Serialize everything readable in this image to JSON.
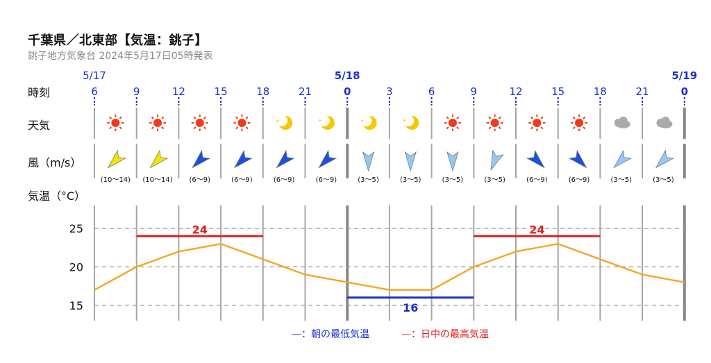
{
  "header": {
    "title": "千葉県／北東部【気温：銚子】",
    "subtitle": "銚子地方気象台 2024年5月17日05時発表"
  },
  "row_labels": {
    "time": "時刻",
    "weather": "天気",
    "wind": "風（m/s）",
    "temp": "気温（°C）"
  },
  "dates": [
    {
      "label": "5/17",
      "col": 0,
      "bold": false
    },
    {
      "label": "5/18",
      "col": 6,
      "bold": true
    },
    {
      "label": "5/19",
      "col": 14,
      "bold": true
    }
  ],
  "hours": [
    "6",
    "9",
    "12",
    "15",
    "18",
    "21",
    "0",
    "3",
    "6",
    "9",
    "12",
    "15",
    "18",
    "21",
    "0"
  ],
  "weather": [
    "sun",
    "sun",
    "sun",
    "sun",
    "moon",
    "moon",
    "moon",
    "moon",
    "sun",
    "sun",
    "sun",
    "sun",
    "cloud",
    "cloud"
  ],
  "wind": [
    {
      "dir": "NE",
      "range": "(10〜14)",
      "color": "#f2e600"
    },
    {
      "dir": "NE",
      "range": "(10〜14)",
      "color": "#f2e600"
    },
    {
      "dir": "NE",
      "range": "(6〜9)",
      "color": "#1a4fe0"
    },
    {
      "dir": "NE",
      "range": "(6〜9)",
      "color": "#1a4fe0"
    },
    {
      "dir": "NE",
      "range": "(6〜9)",
      "color": "#1a4fe0"
    },
    {
      "dir": "NE",
      "range": "(6〜9)",
      "color": "#1a4fe0"
    },
    {
      "dir": "N",
      "range": "(3〜5)",
      "color": "#96c8f5"
    },
    {
      "dir": "N",
      "range": "(3〜5)",
      "color": "#96c8f5"
    },
    {
      "dir": "N",
      "range": "(3〜5)",
      "color": "#96c8f5"
    },
    {
      "dir": "NNE",
      "range": "(3〜5)",
      "color": "#96c8f5"
    },
    {
      "dir": "NW",
      "range": "(6〜9)",
      "color": "#1a4fe0"
    },
    {
      "dir": "NW",
      "range": "(6〜9)",
      "color": "#1a4fe0"
    },
    {
      "dir": "NE",
      "range": "(3〜5)",
      "color": "#96c8f5"
    },
    {
      "dir": "NE",
      "range": "(3〜5)",
      "color": "#96c8f5"
    }
  ],
  "chart_data": {
    "type": "line",
    "x": [
      "6",
      "9",
      "12",
      "15",
      "18",
      "21",
      "0",
      "3",
      "6",
      "9",
      "12",
      "15",
      "18",
      "21",
      "0"
    ],
    "series": [
      {
        "values": [
          17,
          20,
          22,
          23,
          21,
          19,
          18,
          17,
          17,
          20,
          22,
          23,
          21,
          19,
          18
        ],
        "color": "#f5a623"
      }
    ],
    "ylim": [
      13,
      28
    ],
    "yticks": [
      15,
      20,
      25
    ],
    "max_temps": [
      {
        "value": 24,
        "label": "24",
        "from": "9",
        "to": "18",
        "day": "5/17",
        "color": "#e02020"
      },
      {
        "value": 24,
        "label": "24",
        "from": "9",
        "to": "18",
        "day": "5/18",
        "color": "#e02020"
      }
    ],
    "min_temps": [
      {
        "value": 16,
        "label": "16",
        "from": "0",
        "to": "9",
        "day": "5/18",
        "color": "#1a2fd0"
      }
    ],
    "legend": [
      {
        "text": "—：朝の最低気温",
        "color": "#1a2fd0"
      },
      {
        "text": "—：日中の最高気温",
        "color": "#e02020"
      }
    ],
    "grid": true
  }
}
